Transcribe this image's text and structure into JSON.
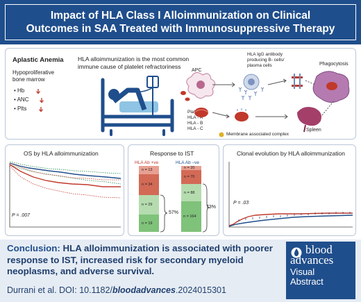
{
  "header": {
    "title_line1": "Impact of HLA Class I Alloimmunization on Clinical",
    "title_line2": "Outcomes in SAA Treated with Immunosuppressive Therapy"
  },
  "top_panel": {
    "heading": "Aplastic Anemia",
    "marrow_line1": "Hypoproliferative",
    "marrow_line2": "bone marrow",
    "counts": [
      "Hb",
      "ANC",
      "Plts"
    ],
    "center_line1": "HLA alloimmunization is the most common",
    "center_line2": "immune cause of platelet refractoriness",
    "apc_label": "APC",
    "b_cell_line1": "HLA IgG antibody",
    "b_cell_line2": "producing B- cells/",
    "b_cell_line3": "plasma cells",
    "phagocytosis_label": "Phagocytosis",
    "platelet_label": "Platelet",
    "hla_labels": [
      "HLA - A",
      "HLA - B",
      "HLA - C"
    ],
    "membrane_label": "Membrane associated complex",
    "spleen_label": "Spleen"
  },
  "os_panel": {
    "title": "OS by HLA alloimmunization",
    "p_value": "P = .007"
  },
  "ist_panel": {
    "title": "Response to IST",
    "pos_label": "HLA Ab +ve",
    "neg_label": "HLA Ab –ve",
    "pos_segments": [
      "n = 13",
      "n = 34",
      "n = 29",
      "n = 19"
    ],
    "neg_segments": [
      "n = 20",
      "n = 70",
      "n = 88",
      "n = 164"
    ],
    "pos_response": "57%",
    "neg_response": "73%"
  },
  "clonal_panel": {
    "title": "Clonal evolution by HLA alloimmunization",
    "p_value": "P = .03"
  },
  "conclusion": {
    "lead": "Conclusion:",
    "body": "HLA alloimmunization is associated with poorer response to IST, increased risk for secondary myeloid neoplasms, and adverse survival."
  },
  "citation": {
    "prefix": "Durrani et al. DOI: 10.1182/",
    "journal": "bloodadvances",
    "suffix": ".2024015301"
  },
  "logo": {
    "word1": "blood",
    "word2": "advances",
    "word3": "Visual",
    "word4": "Abstract"
  },
  "colors": {
    "navy": "#1f4e8c",
    "red": "#c0392b",
    "green": "#1e8a4a",
    "bar_red_light": "#e8a092",
    "bar_red_dark": "#d26a56",
    "bar_green_light": "#b5dcae",
    "bar_green_dark": "#7fc27a"
  }
}
